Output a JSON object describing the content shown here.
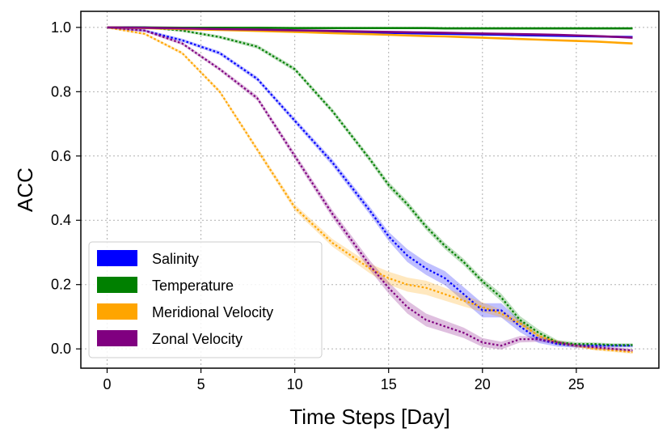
{
  "chart_data": {
    "type": "line",
    "xlabel": "Time Steps [Day]",
    "ylabel": "ACC",
    "xlim": [
      -1.4,
      29.4
    ],
    "ylim": [
      -0.06,
      1.05
    ],
    "xticks": [
      0,
      5,
      10,
      15,
      20,
      25
    ],
    "xtick_labels": [
      "0",
      "5",
      "10",
      "15",
      "20",
      "25"
    ],
    "yticks": [
      0.0,
      0.2,
      0.4,
      0.6,
      0.8,
      1.0
    ],
    "ytick_labels": [
      "0.0",
      "0.2",
      "0.4",
      "0.6",
      "0.8",
      "1.0"
    ],
    "grid": true,
    "legend_position": "lower-left",
    "legend": [
      "Salinity",
      "Temperature",
      "Meridional Velocity",
      "Zonal Velocity"
    ],
    "x": [
      0,
      2,
      4,
      6,
      8,
      10,
      12,
      14,
      15,
      16,
      17,
      18,
      19,
      20,
      21,
      22,
      23,
      24,
      25,
      26,
      27,
      28
    ],
    "series": [
      {
        "name": "Salinity",
        "color": "#0000ff",
        "solid": [
          1.0,
          1.0,
          0.995,
          0.993,
          0.99,
          0.988,
          0.986,
          0.984,
          0.983,
          0.982,
          0.981,
          0.98,
          0.979,
          0.978,
          0.977,
          0.976,
          0.975,
          0.974,
          0.973,
          0.972,
          0.971,
          0.97
        ],
        "dotted": [
          1.0,
          0.99,
          0.96,
          0.92,
          0.84,
          0.71,
          0.58,
          0.43,
          0.35,
          0.29,
          0.25,
          0.22,
          0.17,
          0.12,
          0.12,
          0.07,
          0.03,
          0.015,
          0.01,
          0.01,
          0.01,
          0.01
        ],
        "band": [
          0.003,
          0.004,
          0.005,
          0.006,
          0.007,
          0.008,
          0.01,
          0.012,
          0.014,
          0.02,
          0.02,
          0.022,
          0.022,
          0.022,
          0.022,
          0.018,
          0.012,
          0.008,
          0.006,
          0.005,
          0.005,
          0.005
        ]
      },
      {
        "name": "Temperature",
        "color": "#008000",
        "solid": [
          1.0,
          1.0,
          0.999,
          0.999,
          0.999,
          0.998,
          0.998,
          0.998,
          0.998,
          0.998,
          0.998,
          0.997,
          0.997,
          0.997,
          0.997,
          0.997,
          0.997,
          0.997,
          0.997,
          0.997,
          0.997,
          0.997
        ],
        "dotted": [
          1.0,
          1.0,
          0.99,
          0.97,
          0.94,
          0.87,
          0.74,
          0.59,
          0.51,
          0.45,
          0.38,
          0.32,
          0.27,
          0.21,
          0.16,
          0.09,
          0.05,
          0.02,
          0.015,
          0.015,
          0.012,
          0.012
        ],
        "band": [
          0.003,
          0.003,
          0.004,
          0.005,
          0.006,
          0.007,
          0.008,
          0.009,
          0.01,
          0.01,
          0.01,
          0.01,
          0.01,
          0.01,
          0.012,
          0.012,
          0.01,
          0.007,
          0.006,
          0.005,
          0.005,
          0.005
        ]
      },
      {
        "name": "Meridional Velocity",
        "color": "#ffa500",
        "solid": [
          1.0,
          0.998,
          0.995,
          0.992,
          0.989,
          0.986,
          0.982,
          0.979,
          0.977,
          0.975,
          0.973,
          0.972,
          0.97,
          0.968,
          0.966,
          0.964,
          0.962,
          0.96,
          0.958,
          0.956,
          0.953,
          0.95
        ],
        "dotted": [
          1.0,
          0.98,
          0.92,
          0.8,
          0.62,
          0.44,
          0.33,
          0.25,
          0.22,
          0.2,
          0.19,
          0.17,
          0.15,
          0.13,
          0.11,
          0.08,
          0.04,
          0.02,
          0.01,
          0.0,
          -0.005,
          -0.01
        ],
        "band": [
          0.003,
          0.004,
          0.005,
          0.006,
          0.008,
          0.01,
          0.012,
          0.015,
          0.02,
          0.022,
          0.022,
          0.02,
          0.018,
          0.015,
          0.012,
          0.01,
          0.008,
          0.006,
          0.005,
          0.005,
          0.005,
          0.005
        ]
      },
      {
        "name": "Zonal Velocity",
        "color": "#800080",
        "solid": [
          1.0,
          0.999,
          0.997,
          0.995,
          0.993,
          0.991,
          0.989,
          0.987,
          0.986,
          0.985,
          0.984,
          0.983,
          0.982,
          0.981,
          0.98,
          0.979,
          0.978,
          0.977,
          0.975,
          0.973,
          0.971,
          0.968
        ],
        "dotted": [
          1.0,
          0.99,
          0.95,
          0.87,
          0.78,
          0.6,
          0.42,
          0.26,
          0.19,
          0.13,
          0.09,
          0.07,
          0.05,
          0.02,
          0.01,
          0.03,
          0.03,
          0.02,
          0.01,
          0.005,
          0.0,
          -0.005
        ],
        "band": [
          0.003,
          0.004,
          0.005,
          0.006,
          0.008,
          0.01,
          0.012,
          0.015,
          0.018,
          0.02,
          0.02,
          0.018,
          0.016,
          0.014,
          0.012,
          0.01,
          0.008,
          0.006,
          0.005,
          0.005,
          0.005,
          0.005
        ]
      }
    ]
  }
}
